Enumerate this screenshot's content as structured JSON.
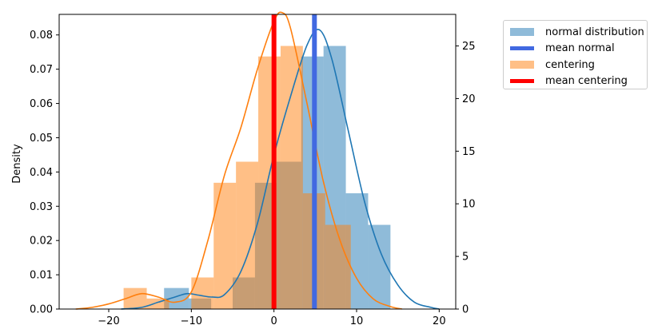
{
  "chart_data": {
    "type": "histogram",
    "ylabel": "Density",
    "xlim": [
      -26,
      22
    ],
    "ylim_left": [
      0,
      0.086
    ],
    "ylim_right": [
      0,
      28
    ],
    "xticks": [
      -20,
      -10,
      0,
      10,
      20
    ],
    "yticks_left": [
      0.0,
      0.01,
      0.02,
      0.03,
      0.04,
      0.05,
      0.06,
      0.07,
      0.08
    ],
    "yticks_right": [
      0,
      5,
      10,
      15,
      20,
      25
    ],
    "series": [
      {
        "name": "normal distribution",
        "color": "#1f77b4",
        "bar_alpha": 0.5,
        "bin_edges": [
          -13.3,
          -10.3,
          -7.6,
          -5.0,
          -2.3,
          0.3,
          3.3,
          6.0,
          8.7,
          11.4,
          14.1
        ],
        "counts": [
          2,
          1,
          0,
          3,
          12,
          14,
          24,
          25,
          11,
          8
        ],
        "kde_x": [
          -18.5,
          -16,
          -14,
          -12,
          -10.5,
          -9,
          -7.5,
          -6,
          -4,
          -2,
          0,
          2,
          4,
          5.5,
          7,
          9,
          11,
          13,
          15,
          17,
          19,
          20
        ],
        "kde_y": [
          0.0,
          0.0005,
          0.002,
          0.0035,
          0.0045,
          0.004,
          0.0035,
          0.0042,
          0.011,
          0.025,
          0.045,
          0.062,
          0.077,
          0.0815,
          0.073,
          0.052,
          0.031,
          0.016,
          0.007,
          0.002,
          0.0005,
          0.0
        ]
      },
      {
        "name": "centering",
        "color": "#ff7f0e",
        "bar_alpha": 0.5,
        "bin_edges": [
          -18.2,
          -15.4,
          -12.7,
          -10.0,
          -7.3,
          -4.6,
          -1.9,
          0.8,
          3.5,
          6.2,
          9.3
        ],
        "counts": [
          2,
          1,
          0,
          3,
          12,
          14,
          24,
          25,
          11,
          8
        ],
        "kde_x": [
          -24,
          -22,
          -20,
          -18,
          -16,
          -14,
          -12,
          -10,
          -8,
          -6,
          -4,
          -2,
          0,
          1,
          2,
          4,
          6,
          8,
          10,
          12,
          14,
          15.5
        ],
        "kde_y": [
          0.0,
          0.0005,
          0.0015,
          0.003,
          0.0045,
          0.0035,
          0.002,
          0.005,
          0.02,
          0.039,
          0.053,
          0.07,
          0.084,
          0.0865,
          0.082,
          0.06,
          0.037,
          0.02,
          0.009,
          0.003,
          0.0008,
          0.0
        ]
      }
    ],
    "vlines": [
      {
        "name": "mean normal",
        "x": 4.9,
        "color": "#4169e1"
      },
      {
        "name": "mean centering",
        "x": 0.0,
        "color": "#ff0000"
      }
    ],
    "legend_position": "outside-right-top",
    "legend": [
      {
        "label": "normal distribution",
        "kind": "patch",
        "color": "#1f77b4",
        "alpha": 0.5
      },
      {
        "label": "mean normal",
        "kind": "line",
        "color": "#4169e1",
        "alpha": 1
      },
      {
        "label": "centering",
        "kind": "patch",
        "color": "#ff7f0e",
        "alpha": 0.5
      },
      {
        "label": "mean centering",
        "kind": "line",
        "color": "#ff0000",
        "alpha": 1
      }
    ]
  }
}
